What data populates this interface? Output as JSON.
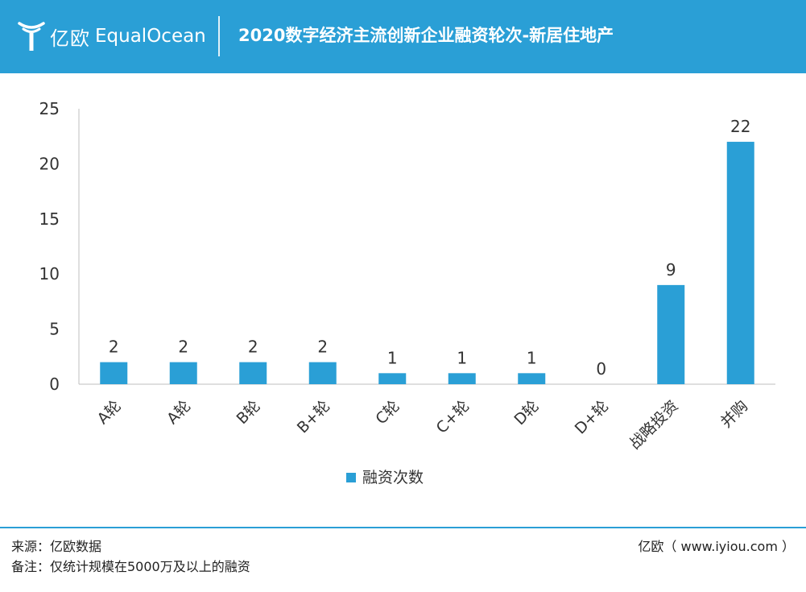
{
  "header": {
    "logo_cn": "亿欧",
    "logo_en": "EqualOcean",
    "title": "2020数字经济主流创新企业融资轮次-新居住地产"
  },
  "colors": {
    "brand": "#2a9fd6",
    "bar": "#2a9fd6",
    "axis": "#bfbfbf",
    "text": "#333333"
  },
  "chart_data": {
    "type": "bar",
    "categories": [
      "A轮",
      "A轮",
      "B轮",
      "B+轮",
      "C轮",
      "C+轮",
      "D轮",
      "D+轮",
      "战略投资",
      "并购"
    ],
    "series": [
      {
        "name": "融资次数",
        "values": [
          2,
          2,
          2,
          2,
          1,
          1,
          1,
          0,
          9,
          22
        ]
      }
    ],
    "ylim": [
      0,
      25
    ],
    "yticks": [
      0,
      5,
      10,
      15,
      20,
      25
    ],
    "data_labels": true,
    "grid": false,
    "legend": "bottom-center"
  },
  "footer": {
    "source": "来源：亿欧数据",
    "note": "备注：仅统计规模在5000万及以上的融资",
    "credit": "亿欧（ www.iyiou.com ）"
  }
}
